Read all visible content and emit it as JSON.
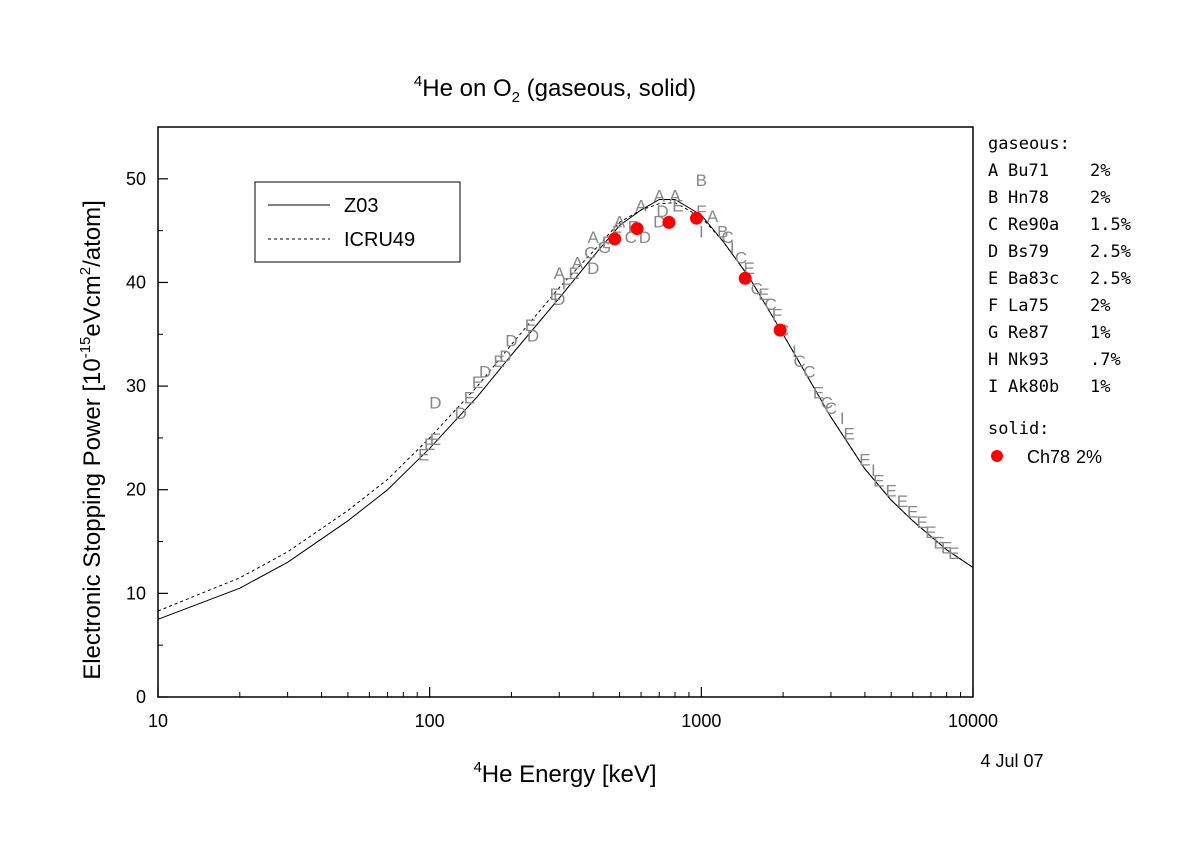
{
  "chart_data": {
    "type": "scatter",
    "title_base": "He on O",
    "title_super": "4",
    "title_sub": "2",
    "title_rest": " (gaseous, solid)",
    "xlabel_super": "4",
    "xlabel_text": "He Energy [keV]",
    "ylabel_pre": "Electronic Stopping Power [10",
    "ylabel_exp": "-15",
    "ylabel_mid": "eVcm",
    "ylabel_sq": "2",
    "ylabel_post": "/atom]",
    "date": "4 Jul 07",
    "x_scale": "log",
    "xlim": [
      10,
      10000
    ],
    "ylim": [
      0,
      55
    ],
    "x_ticks": [
      10,
      100,
      1000,
      10000
    ],
    "x_tick_labels": [
      "10",
      "100",
      "1000",
      "10000"
    ],
    "y_ticks": [
      0,
      10,
      20,
      30,
      40,
      50
    ],
    "y_tick_labels": [
      "0",
      "10",
      "20",
      "30",
      "40",
      "50"
    ],
    "legend_lines": [
      {
        "label": "Z03",
        "style": "solid"
      },
      {
        "label": "ICRU49",
        "style": "dashed"
      }
    ],
    "gaseous_header": "gaseous:",
    "gaseous_entries": [
      {
        "letter": "A",
        "ref": "Bu71",
        "err": "2%"
      },
      {
        "letter": "B",
        "ref": "Hn78",
        "err": "2%"
      },
      {
        "letter": "C",
        "ref": "Re90a",
        "err": "1.5%"
      },
      {
        "letter": "D",
        "ref": "Bs79",
        "err": "2.5%"
      },
      {
        "letter": "E",
        "ref": "Ba83c",
        "err": "2.5%"
      },
      {
        "letter": "F",
        "ref": "La75",
        "err": "2%"
      },
      {
        "letter": "G",
        "ref": "Re87",
        "err": "1%"
      },
      {
        "letter": "H",
        "ref": "Nk93",
        "err": ".7%"
      },
      {
        "letter": "I",
        "ref": "Ak80b",
        "err": "1%"
      }
    ],
    "solid_header": "solid:",
    "solid_entry": {
      "ref": "Ch78",
      "err": "2%",
      "color": "#ff0000"
    },
    "series_lines": [
      {
        "name": "Z03",
        "x": [
          10,
          20,
          30,
          50,
          70,
          100,
          150,
          200,
          300,
          400,
          500,
          600,
          700,
          800,
          1000,
          1200,
          1500,
          2000,
          3000,
          4000,
          5000,
          6000,
          7000,
          8000,
          10000
        ],
        "y": [
          7.5,
          10.5,
          13.0,
          17.0,
          20.0,
          24.0,
          29.0,
          33.0,
          38.5,
          42.5,
          45.5,
          47.0,
          48.0,
          48.0,
          46.5,
          44.0,
          40.5,
          35.0,
          27.0,
          22.0,
          19.0,
          17.0,
          15.5,
          14.2,
          12.5
        ]
      },
      {
        "name": "ICRU49",
        "x": [
          10,
          20,
          30,
          50,
          70,
          100,
          150,
          200,
          300,
          400,
          500,
          600,
          700,
          800,
          1000,
          1200,
          1500,
          2000,
          3000,
          4000,
          5000,
          6000,
          7000,
          8000,
          10000
        ],
        "y": [
          8.3,
          11.5,
          14.0,
          18.0,
          21.0,
          25.0,
          30.0,
          34.0,
          39.5,
          43.0,
          45.8,
          47.0,
          47.6,
          47.7,
          46.3,
          44.0,
          40.5,
          35.0,
          27.0,
          22.0,
          19.0,
          17.0,
          15.5,
          14.2,
          12.5
        ]
      }
    ],
    "gaseous_points": [
      {
        "s": "E",
        "x": 95,
        "y": 23.5
      },
      {
        "s": "E",
        "x": 100,
        "y": 24.5
      },
      {
        "s": "E",
        "x": 105,
        "y": 25.0
      },
      {
        "s": "D",
        "x": 105,
        "y": 28.5
      },
      {
        "s": "D",
        "x": 130,
        "y": 27.5
      },
      {
        "s": "E",
        "x": 140,
        "y": 29.0
      },
      {
        "s": "E",
        "x": 150,
        "y": 30.5
      },
      {
        "s": "D",
        "x": 160,
        "y": 31.5
      },
      {
        "s": "E",
        "x": 180,
        "y": 32.5
      },
      {
        "s": "D",
        "x": 190,
        "y": 33.0
      },
      {
        "s": "D",
        "x": 200,
        "y": 34.5
      },
      {
        "s": "E",
        "x": 235,
        "y": 36.0
      },
      {
        "s": "D",
        "x": 240,
        "y": 35.0
      },
      {
        "s": "E",
        "x": 290,
        "y": 39.0
      },
      {
        "s": "D",
        "x": 300,
        "y": 38.5
      },
      {
        "s": "A",
        "x": 300,
        "y": 41.0
      },
      {
        "s": "F",
        "x": 320,
        "y": 40.0
      },
      {
        "s": "E",
        "x": 340,
        "y": 41.0
      },
      {
        "s": "A",
        "x": 350,
        "y": 42.0
      },
      {
        "s": "D",
        "x": 400,
        "y": 41.5
      },
      {
        "s": "A",
        "x": 400,
        "y": 44.5
      },
      {
        "s": "C",
        "x": 390,
        "y": 43.0
      },
      {
        "s": "G",
        "x": 440,
        "y": 43.5
      },
      {
        "s": "F",
        "x": 450,
        "y": 44.0
      },
      {
        "s": "A",
        "x": 500,
        "y": 46.0
      },
      {
        "s": "F",
        "x": 490,
        "y": 45.0
      },
      {
        "s": "C",
        "x": 550,
        "y": 44.5
      },
      {
        "s": "F",
        "x": 560,
        "y": 45.5
      },
      {
        "s": "A",
        "x": 600,
        "y": 47.5
      },
      {
        "s": "D",
        "x": 620,
        "y": 44.5
      },
      {
        "s": "A",
        "x": 700,
        "y": 48.5
      },
      {
        "s": "D",
        "x": 700,
        "y": 46.0
      },
      {
        "s": "D",
        "x": 720,
        "y": 47.0
      },
      {
        "s": "A",
        "x": 800,
        "y": 48.5
      },
      {
        "s": "E",
        "x": 820,
        "y": 47.5
      },
      {
        "s": "B",
        "x": 1000,
        "y": 50.0
      },
      {
        "s": "F",
        "x": 1000,
        "y": 47.0
      },
      {
        "s": "I",
        "x": 1000,
        "y": 45.0
      },
      {
        "s": "A",
        "x": 1100,
        "y": 46.5
      },
      {
        "s": "B",
        "x": 1200,
        "y": 45.0
      },
      {
        "s": "C",
        "x": 1250,
        "y": 44.5
      },
      {
        "s": "I",
        "x": 1300,
        "y": 43.5
      },
      {
        "s": "C",
        "x": 1400,
        "y": 42.5
      },
      {
        "s": "E",
        "x": 1500,
        "y": 41.5
      },
      {
        "s": "C",
        "x": 1600,
        "y": 39.5
      },
      {
        "s": "E",
        "x": 1700,
        "y": 39.0
      },
      {
        "s": "C",
        "x": 1800,
        "y": 38.0
      },
      {
        "s": "F",
        "x": 1900,
        "y": 37.0
      },
      {
        "s": "C",
        "x": 2000,
        "y": 35.5
      },
      {
        "s": "I",
        "x": 2200,
        "y": 33.5
      },
      {
        "s": "C",
        "x": 2300,
        "y": 32.5
      },
      {
        "s": "C",
        "x": 2500,
        "y": 31.5
      },
      {
        "s": "E",
        "x": 2700,
        "y": 29.5
      },
      {
        "s": "C",
        "x": 2900,
        "y": 28.5
      },
      {
        "s": "C",
        "x": 3000,
        "y": 28.0
      },
      {
        "s": "I",
        "x": 3300,
        "y": 27.0
      },
      {
        "s": "E",
        "x": 3500,
        "y": 25.5
      },
      {
        "s": "E",
        "x": 4000,
        "y": 23.0
      },
      {
        "s": "I",
        "x": 4300,
        "y": 22.0
      },
      {
        "s": "E",
        "x": 4500,
        "y": 21.0
      },
      {
        "s": "E",
        "x": 5000,
        "y": 20.0
      },
      {
        "s": "E",
        "x": 5500,
        "y": 19.0
      },
      {
        "s": "E",
        "x": 6000,
        "y": 18.0
      },
      {
        "s": "E",
        "x": 6500,
        "y": 17.0
      },
      {
        "s": "E",
        "x": 7000,
        "y": 16.0
      },
      {
        "s": "E",
        "x": 7500,
        "y": 15.0
      },
      {
        "s": "E",
        "x": 8000,
        "y": 14.5
      },
      {
        "s": "E",
        "x": 8500,
        "y": 14.0
      }
    ],
    "solid_points": [
      {
        "x": 480,
        "y": 44.2
      },
      {
        "x": 580,
        "y": 45.2
      },
      {
        "x": 760,
        "y": 45.8
      },
      {
        "x": 960,
        "y": 46.2
      },
      {
        "x": 1450,
        "y": 40.4
      },
      {
        "x": 1950,
        "y": 35.4
      }
    ]
  }
}
